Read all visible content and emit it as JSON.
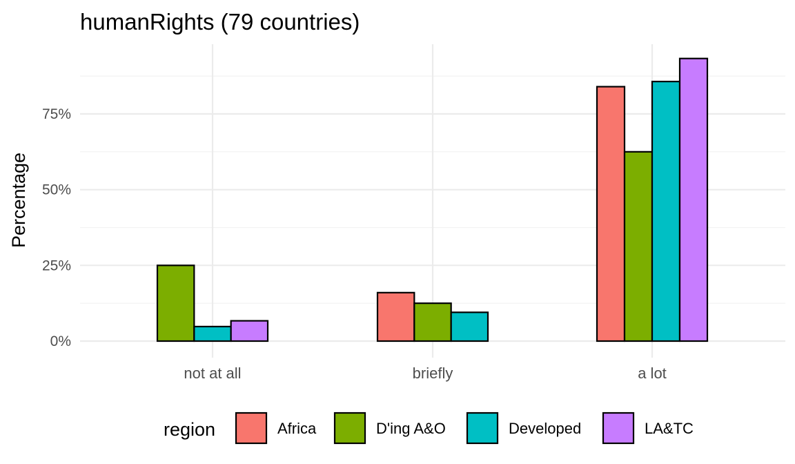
{
  "chart_data": {
    "type": "bar",
    "title": "humanRights (79 countries)",
    "xlabel": "",
    "ylabel": "Percentage",
    "categories": [
      "not at all",
      "briefly",
      "a lot"
    ],
    "series": [
      {
        "name": "Africa",
        "color": "#F8766D",
        "values": [
          0,
          16,
          84
        ]
      },
      {
        "name": "D'ing A&O",
        "color": "#7CAE00",
        "values": [
          25,
          12.5,
          62.5
        ]
      },
      {
        "name": "Developed",
        "color": "#00BFC4",
        "values": [
          4.8,
          9.5,
          85.7
        ]
      },
      {
        "name": "LA&TC",
        "color": "#C77CFF",
        "values": [
          6.7,
          0,
          93.3
        ]
      }
    ],
    "ylim": [
      0,
      97
    ],
    "yticks": [
      0,
      25,
      50,
      75
    ],
    "ytick_labels": [
      "0%",
      "25%",
      "50%",
      "75%"
    ],
    "grid": true,
    "legend": {
      "title": "region",
      "placement": "bottom"
    }
  }
}
